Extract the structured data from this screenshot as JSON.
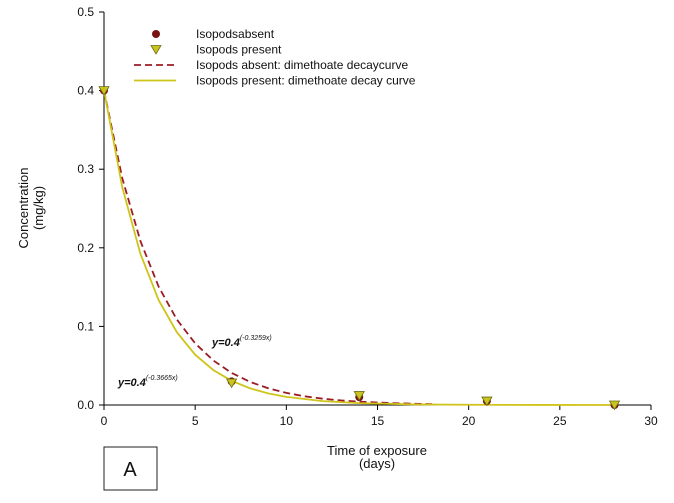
{
  "chart_data": {
    "type": "scatter",
    "xlabel": [
      "Time of exposure",
      "(days)"
    ],
    "ylabel": [
      "Concentration",
      "(mg/kg)"
    ],
    "panel_label": "A",
    "xlim": [
      0,
      30
    ],
    "xticks": [
      0,
      5,
      10,
      15,
      20,
      25,
      30
    ],
    "ylim": [
      0,
      0.5
    ],
    "yticks": [
      {
        "value": 0,
        "label": "0.0"
      },
      0.1,
      0.2,
      0.3,
      0.4,
      0.5
    ],
    "legend": "upper left",
    "series": [
      {
        "name": "Isopodsabsent",
        "type": "scatter",
        "marker": "circle",
        "color": "#7a1414",
        "x": [
          0,
          7,
          14,
          21,
          28
        ],
        "values": [
          0.4,
          0.03,
          0.01,
          0.005,
          0
        ]
      },
      {
        "name": "Isopods present",
        "type": "scatter",
        "marker": "triangle",
        "color": "#c9c41e",
        "x": [
          0,
          7,
          14,
          21,
          28
        ],
        "values": [
          0.4,
          0.028,
          0.012,
          0.005,
          0
        ]
      },
      {
        "name": "Isopods absent: dimethoate decaycurve",
        "type": "line",
        "dashed": true,
        "color": "#9b1c24",
        "x": [
          0,
          1,
          2,
          3,
          4,
          5,
          6,
          7,
          8,
          9,
          10,
          11,
          12,
          13,
          14,
          16,
          18
        ],
        "values": [
          0.4,
          0.2887,
          0.2084,
          0.1504,
          0.1086,
          0.0784,
          0.0566,
          0.0408,
          0.0295,
          0.0213,
          0.0154,
          0.0111,
          0.008,
          0.0058,
          0.0042,
          0.0022,
          0.0011
        ]
      },
      {
        "name": "Isopods present: dimethoate decay curve",
        "type": "line",
        "dashed": false,
        "color": "#cfc41a",
        "x": [
          0,
          1,
          2,
          3,
          4,
          5,
          6,
          7,
          8,
          9,
          10,
          12,
          14,
          17,
          20,
          24,
          28
        ],
        "values": [
          0.4,
          0.2773,
          0.1922,
          0.1333,
          0.0924,
          0.064,
          0.0444,
          0.0308,
          0.0213,
          0.0148,
          0.0103,
          0.0049,
          0.0024,
          0.0007,
          0.0003,
          0.0001,
          0
        ]
      }
    ],
    "annotations": [
      {
        "text": "y=0.4",
        "exponent": "(-0.3259x)"
      },
      {
        "text": "y=0.4",
        "exponent": "(-0.3665x)"
      }
    ]
  }
}
